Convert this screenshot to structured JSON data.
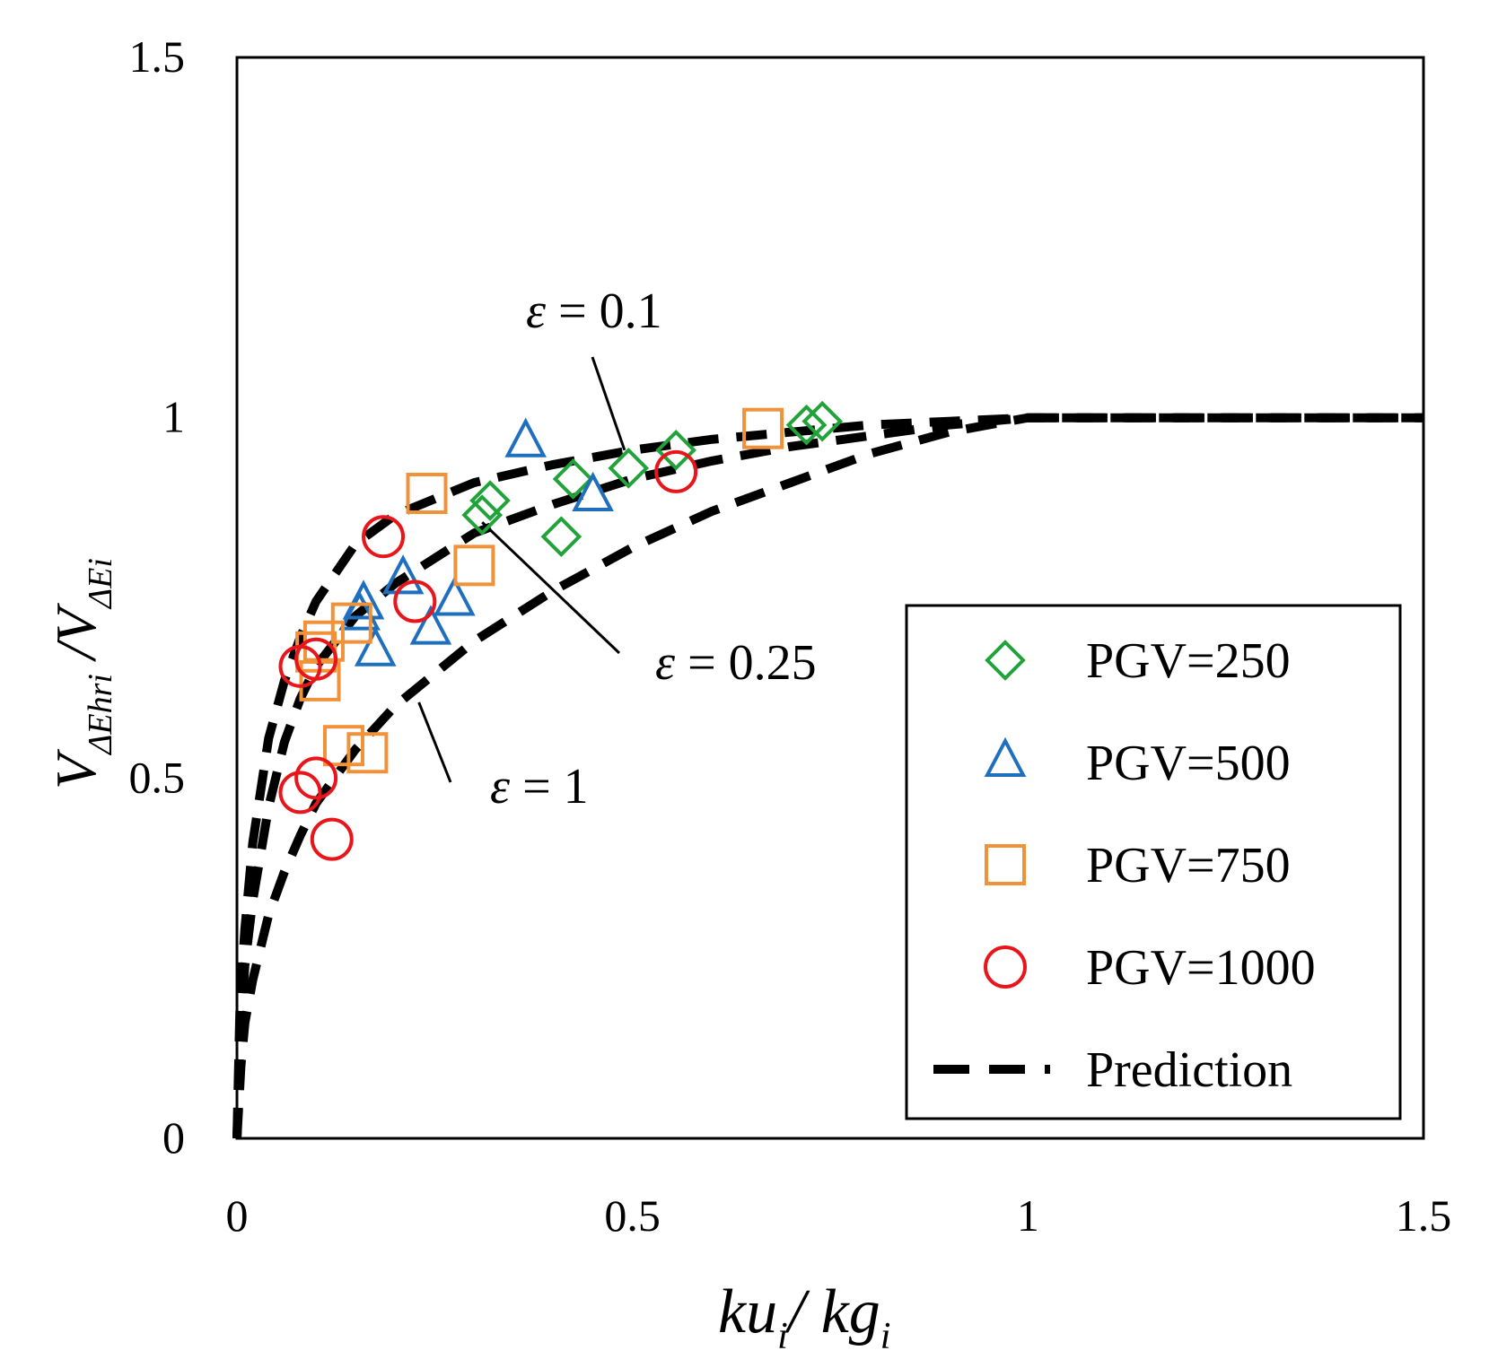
{
  "chart_data": {
    "type": "scatter",
    "title": "",
    "xlabel": {
      "main": "ku",
      "sub1": "i",
      "sep": "/ ",
      "main2": "kg",
      "sub2": "i"
    },
    "ylabel": {
      "v1": "V",
      "sub1": "ΔEhri",
      "sep": " /",
      "v2": "V",
      "sub2": "ΔEi"
    },
    "xlim": [
      0,
      1.5
    ],
    "ylim": [
      0,
      1.5
    ],
    "x_ticks": [
      0,
      0.5,
      1,
      1.5
    ],
    "x_tick_labels": [
      "0",
      "0.5",
      "1",
      "1.5"
    ],
    "y_ticks": [
      0,
      0.5,
      1,
      1.5
    ],
    "y_tick_labels": [
      "0",
      "0.5",
      "1",
      "1.5"
    ],
    "grid": false,
    "legend_position": "bottom-right",
    "series": [
      {
        "name": "PGV=250",
        "marker": "diamond",
        "color": "#22a33a",
        "points": [
          [
            0.31,
            0.865
          ],
          [
            0.32,
            0.885
          ],
          [
            0.41,
            0.835
          ],
          [
            0.425,
            0.915
          ],
          [
            0.495,
            0.93
          ],
          [
            0.555,
            0.955
          ],
          [
            0.72,
            0.99
          ],
          [
            0.74,
            0.995
          ]
        ]
      },
      {
        "name": "PGV=500",
        "marker": "triangle",
        "color": "#1f6fbf",
        "points": [
          [
            0.155,
            0.725
          ],
          [
            0.16,
            0.74
          ],
          [
            0.175,
            0.675
          ],
          [
            0.21,
            0.775
          ],
          [
            0.245,
            0.705
          ],
          [
            0.275,
            0.745
          ],
          [
            0.365,
            0.965
          ],
          [
            0.45,
            0.89
          ]
        ]
      },
      {
        "name": "PGV=750",
        "marker": "square",
        "color": "#f0923a",
        "points": [
          [
            0.1,
            0.675
          ],
          [
            0.11,
            0.69
          ],
          [
            0.105,
            0.635
          ],
          [
            0.145,
            0.715
          ],
          [
            0.135,
            0.545
          ],
          [
            0.165,
            0.535
          ],
          [
            0.24,
            0.895
          ],
          [
            0.3,
            0.795
          ],
          [
            0.665,
            0.985
          ]
        ]
      },
      {
        "name": "PGV=1000",
        "marker": "circle",
        "color": "#e8161b",
        "points": [
          [
            0.08,
            0.655
          ],
          [
            0.1,
            0.665
          ],
          [
            0.08,
            0.48
          ],
          [
            0.1,
            0.5
          ],
          [
            0.12,
            0.415
          ],
          [
            0.185,
            0.835
          ],
          [
            0.225,
            0.745
          ],
          [
            0.555,
            0.925
          ]
        ]
      },
      {
        "name": "Prediction",
        "marker": "dashed-line",
        "color": "#000000",
        "curves": [
          {
            "epsilon": "0.1",
            "x": [
              0,
              0.004,
              0.01,
              0.02,
              0.04,
              0.06,
              0.08,
              0.1,
              0.15,
              0.2,
              0.3,
              0.4,
              0.5,
              0.6,
              0.7,
              0.8,
              0.9,
              1.0,
              1.5
            ],
            "y": [
              0,
              0.19,
              0.29,
              0.41,
              0.555,
              0.635,
              0.695,
              0.745,
              0.825,
              0.865,
              0.91,
              0.935,
              0.955,
              0.97,
              0.98,
              0.99,
              0.995,
              1.0,
              1.0
            ]
          },
          {
            "epsilon": "0.25",
            "x": [
              0,
              0.005,
              0.01,
              0.02,
              0.04,
              0.06,
              0.08,
              0.1,
              0.15,
              0.2,
              0.3,
              0.4,
              0.5,
              0.6,
              0.7,
              0.8,
              0.9,
              1.0,
              1.5
            ],
            "y": [
              0,
              0.16,
              0.24,
              0.33,
              0.46,
              0.55,
              0.61,
              0.655,
              0.725,
              0.77,
              0.84,
              0.88,
              0.915,
              0.94,
              0.96,
              0.975,
              0.99,
              1.0,
              1.0
            ]
          },
          {
            "epsilon": "1",
            "x": [
              0,
              0.005,
              0.01,
              0.02,
              0.04,
              0.06,
              0.08,
              0.1,
              0.15,
              0.2,
              0.3,
              0.4,
              0.5,
              0.6,
              0.7,
              0.8,
              0.9,
              1.0,
              1.5
            ],
            "y": [
              0,
              0.1,
              0.16,
              0.22,
              0.31,
              0.37,
              0.42,
              0.465,
              0.54,
              0.6,
              0.69,
              0.76,
              0.82,
              0.87,
              0.91,
              0.95,
              0.98,
              1.0,
              1.0
            ]
          }
        ]
      }
    ],
    "annotations": [
      {
        "prefix": "ε",
        "text": " = 0.1",
        "target": [
          0.49,
          0.955
        ]
      },
      {
        "prefix": "ε",
        "text": " = 0.25",
        "target": [
          0.31,
          0.855
        ]
      },
      {
        "prefix": "ε",
        "text": " = 1",
        "target": [
          0.23,
          0.605
        ]
      }
    ]
  }
}
